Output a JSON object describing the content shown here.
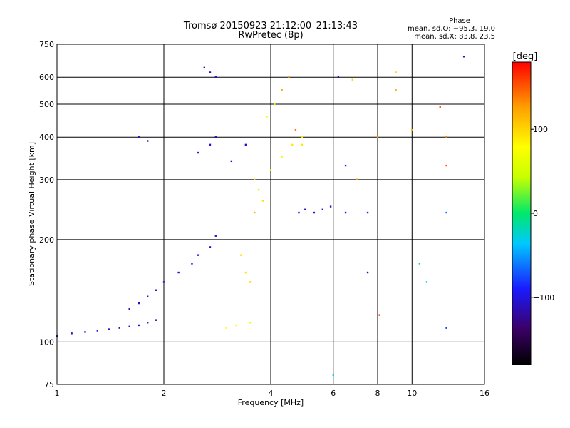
{
  "chart_data": {
    "type": "scatter",
    "title": "Tromsø 20150923 21:12:00–21:13:43",
    "subtitle": "RwPretec (8p)",
    "xlabel": "Frequency [MHz]",
    "ylabel": "Stationary phase Virtual Height [km]",
    "x_scale": "log",
    "y_scale": "log",
    "xlim": [
      1,
      16
    ],
    "ylim": [
      75,
      750
    ],
    "x_ticks": [
      1,
      2,
      4,
      6,
      8,
      10,
      16
    ],
    "x_tick_labels": [
      "1",
      "2",
      "4",
      "6",
      "8",
      "10",
      "16"
    ],
    "y_ticks": [
      75,
      100,
      200,
      300,
      400,
      500,
      600,
      750
    ],
    "y_tick_labels": [
      "75",
      "100",
      "200",
      "300",
      "400",
      "500",
      "600",
      "750"
    ],
    "grid": true,
    "phase_stats": {
      "heading": "Phase",
      "line_o": "mean, sd,O: −95.3, 19.0",
      "line_x": "mean, sd,X:  83.8, 23.5"
    },
    "colorbar": {
      "label": "[deg]",
      "range": [
        -180,
        180
      ],
      "ticks": [
        100,
        0,
        -100
      ],
      "tick_labels": [
        "100",
        "0",
        "−100"
      ],
      "colors": [
        "#000000",
        "#3c0069",
        "#1a1aff",
        "#00c8ff",
        "#00e86a",
        "#c8ff00",
        "#ffff00",
        "#ffa000",
        "#ff0000"
      ]
    },
    "series": [
      {
        "name": "",
        "points": [
          [
            1.0,
            104,
            -110
          ],
          [
            1.1,
            106,
            -110
          ],
          [
            1.2,
            107,
            -105
          ],
          [
            1.3,
            108,
            -110
          ],
          [
            1.4,
            109,
            -105
          ],
          [
            1.5,
            110,
            -110
          ],
          [
            1.6,
            111,
            -105
          ],
          [
            1.7,
            112,
            -110
          ],
          [
            1.8,
            114,
            -100
          ],
          [
            1.9,
            116,
            -110
          ],
          [
            1.6,
            125,
            -105
          ],
          [
            1.7,
            130,
            -110
          ],
          [
            1.8,
            136,
            -105
          ],
          [
            1.9,
            142,
            -110
          ],
          [
            2.0,
            150,
            -100
          ],
          [
            2.2,
            160,
            -110
          ],
          [
            2.4,
            170,
            -105
          ],
          [
            2.5,
            180,
            -100
          ],
          [
            2.7,
            190,
            -110
          ],
          [
            2.8,
            205,
            -100
          ],
          [
            2.5,
            360,
            -105
          ],
          [
            2.7,
            380,
            -100
          ],
          [
            2.8,
            400,
            -110
          ],
          [
            3.1,
            340,
            -105
          ],
          [
            3.4,
            380,
            -100
          ],
          [
            2.6,
            640,
            -110
          ],
          [
            2.7,
            620,
            -105
          ],
          [
            2.8,
            600,
            -110
          ],
          [
            1.7,
            400,
            -110
          ],
          [
            1.8,
            390,
            -105
          ],
          [
            3.3,
            180,
            95
          ],
          [
            3.4,
            160,
            90
          ],
          [
            3.5,
            150,
            100
          ],
          [
            3.6,
            300,
            100
          ],
          [
            3.7,
            280,
            90
          ],
          [
            3.8,
            260,
            95
          ],
          [
            4.0,
            320,
            80
          ],
          [
            4.3,
            350,
            70
          ],
          [
            4.6,
            380,
            90
          ],
          [
            4.9,
            400,
            95
          ],
          [
            3.9,
            460,
            60
          ],
          [
            4.1,
            500,
            55
          ],
          [
            4.3,
            550,
            120
          ],
          [
            4.5,
            600,
            130
          ],
          [
            4.7,
            420,
            140
          ],
          [
            4.9,
            380,
            90
          ],
          [
            3.0,
            110,
            80
          ],
          [
            3.2,
            112,
            85
          ],
          [
            3.5,
            114,
            70
          ],
          [
            3.6,
            240,
            120
          ],
          [
            4.8,
            240,
            -100
          ],
          [
            5.0,
            245,
            -110
          ],
          [
            5.3,
            240,
            -105
          ],
          [
            5.6,
            245,
            -100
          ],
          [
            5.9,
            250,
            -110
          ],
          [
            6.5,
            240,
            -90
          ],
          [
            7.5,
            240,
            -85
          ],
          [
            6.2,
            600,
            -100
          ],
          [
            6.5,
            330,
            -80
          ],
          [
            6.8,
            590,
            100
          ],
          [
            7.0,
            300,
            130
          ],
          [
            8.0,
            400,
            130
          ],
          [
            9.0,
            620,
            100
          ],
          [
            10.0,
            420,
            120
          ],
          [
            10.5,
            170,
            -20
          ],
          [
            11.0,
            150,
            -30
          ],
          [
            12.0,
            490,
            150
          ],
          [
            12.5,
            400,
            140
          ],
          [
            12.5,
            330,
            150
          ],
          [
            12.5,
            240,
            -60
          ],
          [
            12.5,
            110,
            -80
          ],
          [
            14.0,
            690,
            -100
          ],
          [
            6.0,
            80,
            -30
          ],
          [
            7.5,
            160,
            -110
          ],
          [
            8.1,
            120,
            160
          ],
          [
            9.0,
            550,
            120
          ]
        ]
      }
    ]
  }
}
